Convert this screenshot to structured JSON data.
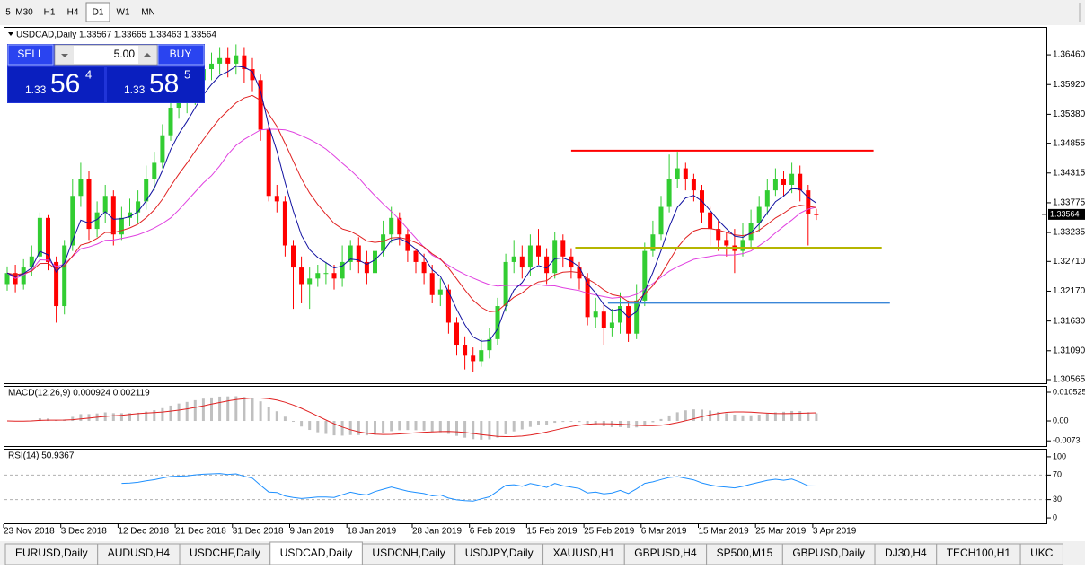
{
  "toolbar": {
    "timeframes": [
      "5",
      "M30",
      "H1",
      "H4",
      "D1",
      "W1",
      "MN"
    ],
    "active": "D1"
  },
  "header": "USDCAD,Daily  1.33567 1.33665 1.33463 1.33564",
  "trade_panel": {
    "sell": "SELL",
    "buy": "BUY",
    "lots": "5.00",
    "bid": {
      "big": "1.33",
      "main": "56",
      "pip": "4"
    },
    "ask": {
      "big": "1.33",
      "main": "58",
      "pip": "5"
    }
  },
  "price_axis": {
    "ylim": [
      1.305,
      1.3695
    ],
    "ticks": [
      {
        "value": 1.3646,
        "label": "1.36460"
      },
      {
        "value": 1.3592,
        "label": "1.35920"
      },
      {
        "value": 1.3538,
        "label": "1.35380"
      },
      {
        "value": 1.34855,
        "label": "1.34855"
      },
      {
        "value": 1.34315,
        "label": "1.34315"
      },
      {
        "value": 1.33775,
        "label": "1.33775"
      },
      {
        "value": 1.33235,
        "label": "1.33235"
      },
      {
        "value": 1.3271,
        "label": "1.32710"
      },
      {
        "value": 1.3217,
        "label": "1.32170"
      },
      {
        "value": 1.3163,
        "label": "1.31630"
      },
      {
        "value": 1.3109,
        "label": "1.31090"
      },
      {
        "value": 1.30565,
        "label": "1.30565"
      }
    ],
    "current": 1.33564
  },
  "candles": [
    [
      1.323,
      1.3262,
      1.3218,
      1.325
    ],
    [
      1.325,
      1.3265,
      1.3215,
      1.323
    ],
    [
      1.323,
      1.3275,
      1.322,
      1.326
    ],
    [
      1.326,
      1.33,
      1.3245,
      1.328
    ],
    [
      1.328,
      1.336,
      1.327,
      1.335
    ],
    [
      1.335,
      1.3355,
      1.3255,
      1.327
    ],
    [
      1.327,
      1.328,
      1.316,
      1.319
    ],
    [
      1.319,
      1.331,
      1.3175,
      1.33
    ],
    [
      1.33,
      1.342,
      1.329,
      1.339
    ],
    [
      1.339,
      1.345,
      1.337,
      1.342
    ],
    [
      1.342,
      1.3435,
      1.331,
      1.333
    ],
    [
      1.333,
      1.338,
      1.3315,
      1.336
    ],
    [
      1.336,
      1.341,
      1.334,
      1.339
    ],
    [
      1.339,
      1.34,
      1.33,
      1.332
    ],
    [
      1.332,
      1.337,
      1.331,
      1.335
    ],
    [
      1.335,
      1.3385,
      1.3335,
      1.336
    ],
    [
      1.336,
      1.34,
      1.334,
      1.338
    ],
    [
      1.338,
      1.3445,
      1.3365,
      1.342
    ],
    [
      1.342,
      1.347,
      1.34,
      1.345
    ],
    [
      1.345,
      1.352,
      1.344,
      1.35
    ],
    [
      1.35,
      1.3565,
      1.349,
      1.355
    ],
    [
      1.355,
      1.3585,
      1.353,
      1.356
    ],
    [
      1.356,
      1.36,
      1.354,
      1.357
    ],
    [
      1.357,
      1.362,
      1.3555,
      1.36
    ],
    [
      1.36,
      1.364,
      1.3585,
      1.362
    ],
    [
      1.362,
      1.365,
      1.36,
      1.363
    ],
    [
      1.363,
      1.366,
      1.361,
      1.364
    ],
    [
      1.364,
      1.366,
      1.3605,
      1.363
    ],
    [
      1.363,
      1.3665,
      1.361,
      1.3645
    ],
    [
      1.3645,
      1.366,
      1.3595,
      1.362
    ],
    [
      1.362,
      1.364,
      1.358,
      1.36
    ],
    [
      1.36,
      1.361,
      1.349,
      1.351
    ],
    [
      1.351,
      1.352,
      1.338,
      1.339
    ],
    [
      1.339,
      1.341,
      1.336,
      1.338
    ],
    [
      1.338,
      1.339,
      1.328,
      1.33
    ],
    [
      1.33,
      1.331,
      1.3185,
      1.326
    ],
    [
      1.326,
      1.328,
      1.3195,
      1.323
    ],
    [
      1.323,
      1.326,
      1.3185,
      1.324
    ],
    [
      1.324,
      1.3265,
      1.3225,
      1.325
    ],
    [
      1.325,
      1.327,
      1.323,
      1.325
    ],
    [
      1.325,
      1.3265,
      1.322,
      1.324
    ],
    [
      1.324,
      1.33,
      1.3225,
      1.327
    ],
    [
      1.327,
      1.331,
      1.3255,
      1.33
    ],
    [
      1.33,
      1.3315,
      1.325,
      1.327
    ],
    [
      1.327,
      1.329,
      1.323,
      1.325
    ],
    [
      1.325,
      1.331,
      1.324,
      1.329
    ],
    [
      1.329,
      1.3345,
      1.328,
      1.332
    ],
    [
      1.332,
      1.337,
      1.3305,
      1.335
    ],
    [
      1.335,
      1.336,
      1.33,
      1.332
    ],
    [
      1.332,
      1.333,
      1.327,
      1.329
    ],
    [
      1.329,
      1.3295,
      1.325,
      1.327
    ],
    [
      1.327,
      1.3285,
      1.323,
      1.325
    ],
    [
      1.325,
      1.3265,
      1.3195,
      1.321
    ],
    [
      1.321,
      1.324,
      1.319,
      1.322
    ],
    [
      1.322,
      1.323,
      1.314,
      1.316
    ],
    [
      1.316,
      1.317,
      1.31,
      1.312
    ],
    [
      1.312,
      1.3135,
      1.3075,
      1.31
    ],
    [
      1.31,
      1.3115,
      1.307,
      1.309
    ],
    [
      1.309,
      1.313,
      1.308,
      1.311
    ],
    [
      1.311,
      1.315,
      1.3095,
      1.313
    ],
    [
      1.313,
      1.3205,
      1.312,
      1.319
    ],
    [
      1.319,
      1.3285,
      1.318,
      1.327
    ],
    [
      1.327,
      1.331,
      1.325,
      1.328
    ],
    [
      1.328,
      1.33,
      1.324,
      1.326
    ],
    [
      1.326,
      1.332,
      1.3245,
      1.33
    ],
    [
      1.33,
      1.333,
      1.3265,
      1.328
    ],
    [
      1.328,
      1.3295,
      1.323,
      1.325
    ],
    [
      1.325,
      1.3325,
      1.324,
      1.331
    ],
    [
      1.331,
      1.332,
      1.326,
      1.328
    ],
    [
      1.328,
      1.3295,
      1.324,
      1.326
    ],
    [
      1.326,
      1.327,
      1.322,
      1.324
    ],
    [
      1.324,
      1.325,
      1.3155,
      1.317
    ],
    [
      1.317,
      1.3205,
      1.315,
      1.318
    ],
    [
      1.318,
      1.3195,
      1.312,
      1.315
    ],
    [
      1.315,
      1.3185,
      1.3135,
      1.316
    ],
    [
      1.316,
      1.3215,
      1.314,
      1.319
    ],
    [
      1.319,
      1.32,
      1.3125,
      1.314
    ],
    [
      1.314,
      1.323,
      1.313,
      1.32
    ],
    [
      1.32,
      1.3305,
      1.319,
      1.329
    ],
    [
      1.329,
      1.3345,
      1.328,
      1.332
    ],
    [
      1.332,
      1.339,
      1.331,
      1.337
    ],
    [
      1.337,
      1.3465,
      1.336,
      1.342
    ],
    [
      1.342,
      1.347,
      1.3405,
      1.344
    ],
    [
      1.344,
      1.345,
      1.34,
      1.342
    ],
    [
      1.342,
      1.343,
      1.338,
      1.34
    ],
    [
      1.34,
      1.341,
      1.334,
      1.336
    ],
    [
      1.336,
      1.337,
      1.33,
      1.333
    ],
    [
      1.333,
      1.3345,
      1.329,
      1.331
    ],
    [
      1.331,
      1.3325,
      1.328,
      1.33
    ],
    [
      1.33,
      1.333,
      1.325,
      1.329
    ],
    [
      1.329,
      1.334,
      1.328,
      1.331
    ],
    [
      1.331,
      1.3365,
      1.3295,
      1.334
    ],
    [
      1.334,
      1.339,
      1.3325,
      1.337
    ],
    [
      1.337,
      1.342,
      1.3355,
      1.34
    ],
    [
      1.34,
      1.344,
      1.339,
      1.342
    ],
    [
      1.342,
      1.3435,
      1.339,
      1.341
    ],
    [
      1.341,
      1.345,
      1.3395,
      1.343
    ],
    [
      1.343,
      1.3445,
      1.338,
      1.34
    ],
    [
      1.34,
      1.341,
      1.33,
      1.3357
    ],
    [
      1.33567,
      1.33665,
      1.33463,
      1.33564
    ]
  ],
  "levels": [
    {
      "price": 1.3472,
      "color": "#ff0000",
      "from": 69,
      "to": 106
    },
    {
      "price": 1.3296,
      "color": "#b5b500",
      "from": 69.5,
      "to": 107
    },
    {
      "price": 1.3196,
      "color": "#3a86d8",
      "from": 73.5,
      "to": 108
    }
  ],
  "date_labels": [
    {
      "bar": 0,
      "label": "23 Nov 2018"
    },
    {
      "bar": 7,
      "label": "3 Dec 2018"
    },
    {
      "bar": 14,
      "label": "12 Dec 2018"
    },
    {
      "bar": 21,
      "label": "21 Dec 2018"
    },
    {
      "bar": 28,
      "label": "31 Dec 2018"
    },
    {
      "bar": 35,
      "label": "9 Jan 2019"
    },
    {
      "bar": 42,
      "label": "18 Jan 2019"
    },
    {
      "bar": 50,
      "label": "28 Jan 2019"
    },
    {
      "bar": 57,
      "label": "6 Feb 2019"
    },
    {
      "bar": 64,
      "label": "15 Feb 2019"
    },
    {
      "bar": 71,
      "label": "25 Feb 2019"
    },
    {
      "bar": 78,
      "label": "6 Mar 2019"
    },
    {
      "bar": 85,
      "label": "15 Mar 2019"
    },
    {
      "bar": 92,
      "label": "25 Mar 2019"
    },
    {
      "bar": 99,
      "label": "3 Apr 2019"
    }
  ],
  "macd": {
    "title": "MACD(12,26,9) 0.000924 0.002119",
    "ylim": [
      -0.0092,
      0.0125
    ],
    "ticks": [
      0.010525,
      {
        "value": 0,
        "label": "0.00"
      },
      -0.0073
    ]
  },
  "rsi": {
    "title": "RSI(14) 50.9367",
    "ylim": [
      -8.7,
      111.6
    ],
    "ticks": [
      100,
      70,
      30,
      0
    ],
    "levels": [
      70,
      30
    ]
  },
  "tabs": {
    "items": [
      "EURUSD,Daily",
      "AUDUSD,H4",
      "USDCHF,Daily",
      "USDCAD,Daily",
      "USDCNH,Daily",
      "USDJPY,Daily",
      "XAUUSD,H1",
      "GBPUSD,H4",
      "SP500,M15",
      "GBPUSD,Daily",
      "DJ30,H4",
      "TECH100,H1",
      "UKC"
    ],
    "active": "USDCAD,Daily"
  }
}
